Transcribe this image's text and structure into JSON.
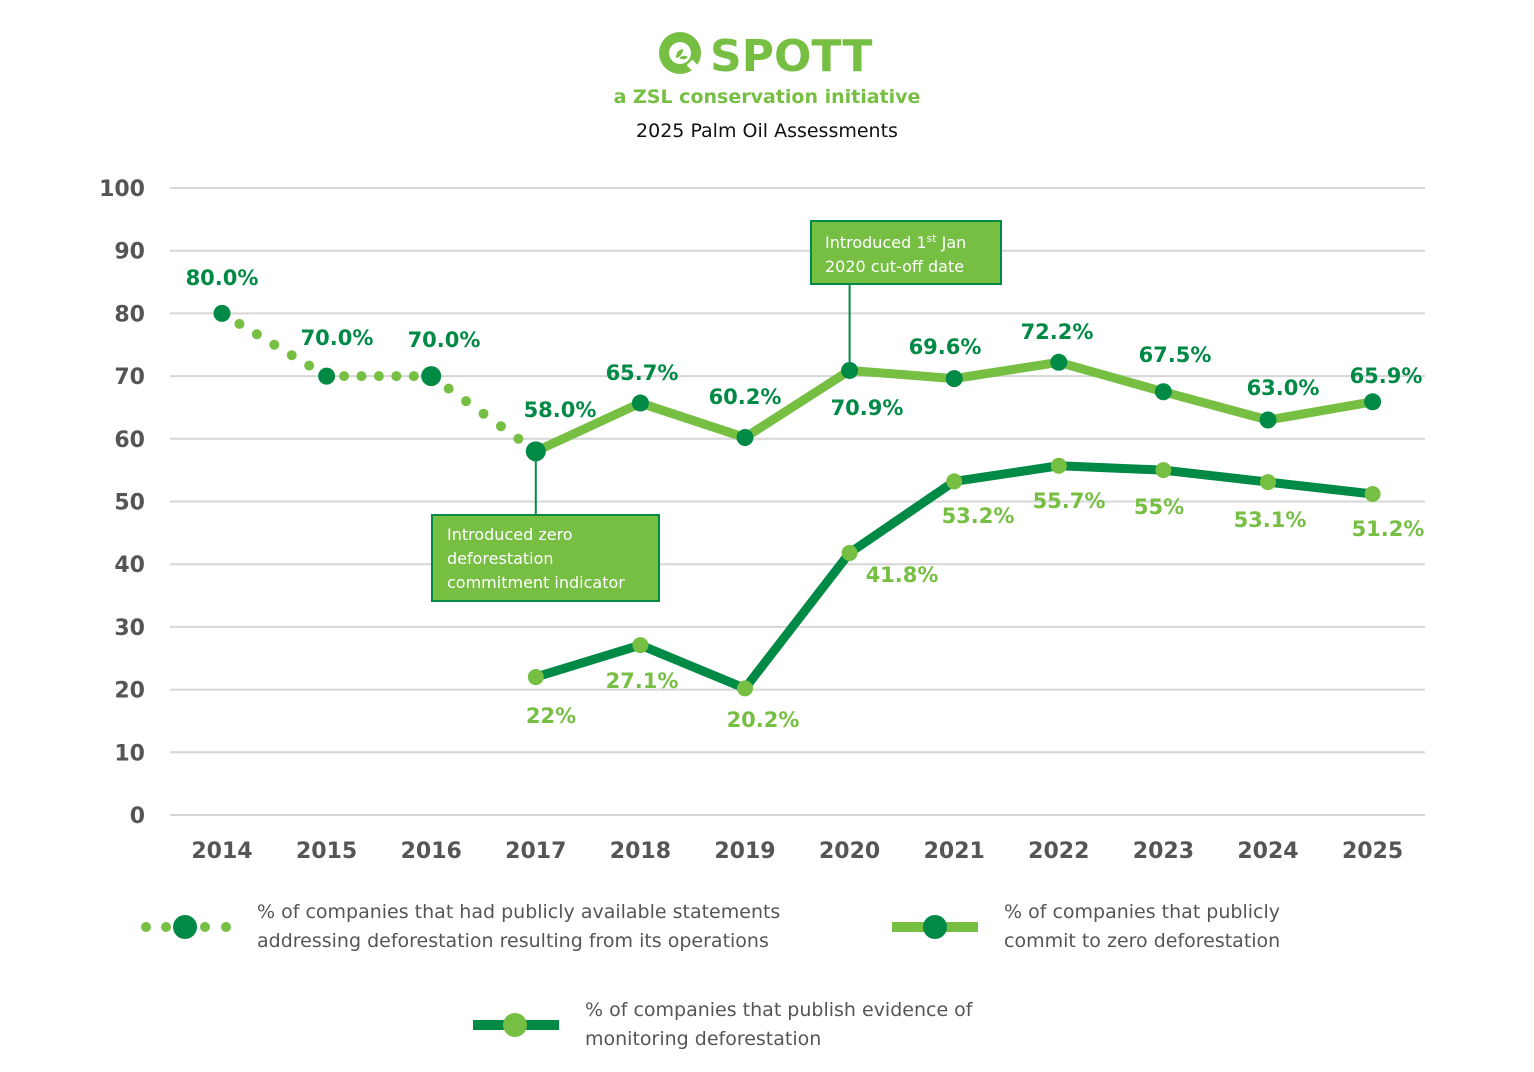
{
  "header": {
    "logo_text": "SPOTT",
    "tagline": "a ZSL conservation initiative",
    "title": "2025 Palm Oil Assessments"
  },
  "colors": {
    "dark_green": "#008a45",
    "light_green": "#76bf43",
    "grid": "#d6d6d6",
    "tick_text": "#555555",
    "annotation_border": "#008a45"
  },
  "chart_data": {
    "type": "line",
    "title": "2025 Palm Oil Assessments",
    "xlabel": "",
    "ylabel": "",
    "x": [
      "2014",
      "2015",
      "2016",
      "2017",
      "2018",
      "2019",
      "2020",
      "2021",
      "2022",
      "2023",
      "2024",
      "2025"
    ],
    "ylim": [
      0,
      100
    ],
    "yticks": [
      0,
      10,
      20,
      30,
      40,
      50,
      60,
      70,
      80,
      90,
      100
    ],
    "grid": true,
    "series": [
      {
        "name": "% of companies that had publicly available statements addressing deforestation resulting from its operations",
        "style": "dotted",
        "x": [
          "2014",
          "2015",
          "2016",
          "2017"
        ],
        "values": [
          80.0,
          70.0,
          70.0,
          58.0
        ],
        "labels": [
          "80.0%",
          "70.0%",
          "70.0%",
          "58.0%"
        ]
      },
      {
        "name": "% of companies that publicly commit to zero deforestation",
        "style": "solid-light",
        "x": [
          "2017",
          "2018",
          "2019",
          "2020",
          "2021",
          "2022",
          "2023",
          "2024",
          "2025"
        ],
        "values": [
          58.0,
          65.7,
          60.2,
          70.9,
          69.6,
          72.2,
          67.5,
          63.0,
          65.9
        ],
        "labels": [
          "",
          "65.7%",
          "60.2%",
          "70.9%",
          "69.6%",
          "72.2%",
          "67.5%",
          "63.0%",
          "65.9%"
        ]
      },
      {
        "name": "% of companies that publish evidence of monitoring deforestation",
        "style": "solid-dark",
        "x": [
          "2017",
          "2018",
          "2019",
          "2020",
          "2021",
          "2022",
          "2023",
          "2024",
          "2025"
        ],
        "values": [
          22,
          27.1,
          20.2,
          41.8,
          53.2,
          55.7,
          55,
          53.1,
          51.2
        ],
        "labels": [
          "22%",
          "27.1%",
          "20.2%",
          "41.8%",
          "53.2%",
          "55.7%",
          "55%",
          "53.1%",
          "51.2%"
        ]
      }
    ],
    "annotations": [
      {
        "x": "2017",
        "value": 58.0,
        "text_lines": [
          "Introduced zero",
          "deforestation",
          "commitment indicator"
        ],
        "position": "below"
      },
      {
        "x": "2020",
        "value": 70.9,
        "text_lines": [
          "Introduced 1",
          "2020 cut-off date"
        ],
        "superscript": "st",
        "suffix": " Jan",
        "position": "above"
      }
    ],
    "legend": {
      "placement": "bottom",
      "items": [
        {
          "label_lines": [
            "% of companies that had publicly available statements",
            "addressing deforestation resulting from its operations"
          ]
        },
        {
          "label_lines": [
            "% of companies that publicly",
            "commit to zero deforestation"
          ]
        },
        {
          "label_lines": [
            "% of companies that publish evidence of",
            "monitoring deforestation"
          ]
        }
      ]
    }
  }
}
